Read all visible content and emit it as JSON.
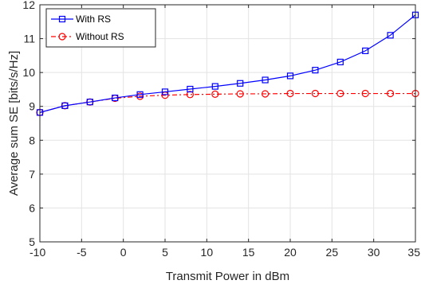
{
  "chart_data": {
    "type": "line",
    "xlabel": "Transmit Power in dBm",
    "ylabel": "Average sum SE [bits/s/Hz]",
    "xlim": [
      -10,
      35
    ],
    "ylim": [
      5,
      12
    ],
    "xticks": [
      -10,
      -5,
      0,
      5,
      10,
      15,
      20,
      25,
      30,
      35
    ],
    "yticks": [
      5,
      6,
      7,
      8,
      9,
      10,
      11,
      12
    ],
    "grid": true,
    "legend_position": "top-left",
    "x": [
      -10,
      -7,
      -4,
      -1,
      2,
      5,
      8,
      11,
      14,
      17,
      20,
      23,
      26,
      29,
      32,
      35
    ],
    "series": [
      {
        "name": "With RS",
        "color": "#0000ff",
        "marker": "square",
        "line_style": "solid",
        "values": [
          8.82,
          9.02,
          9.13,
          9.25,
          9.35,
          9.43,
          9.51,
          9.59,
          9.68,
          9.78,
          9.9,
          10.07,
          10.31,
          10.64,
          11.1,
          11.7
        ]
      },
      {
        "name": "Without RS",
        "color": "#ff0000",
        "marker": "circle",
        "line_style": "dash-dot",
        "values": [
          8.82,
          9.02,
          9.13,
          9.24,
          9.3,
          9.33,
          9.35,
          9.36,
          9.37,
          9.37,
          9.38,
          9.38,
          9.38,
          9.38,
          9.38,
          9.38
        ]
      }
    ]
  }
}
